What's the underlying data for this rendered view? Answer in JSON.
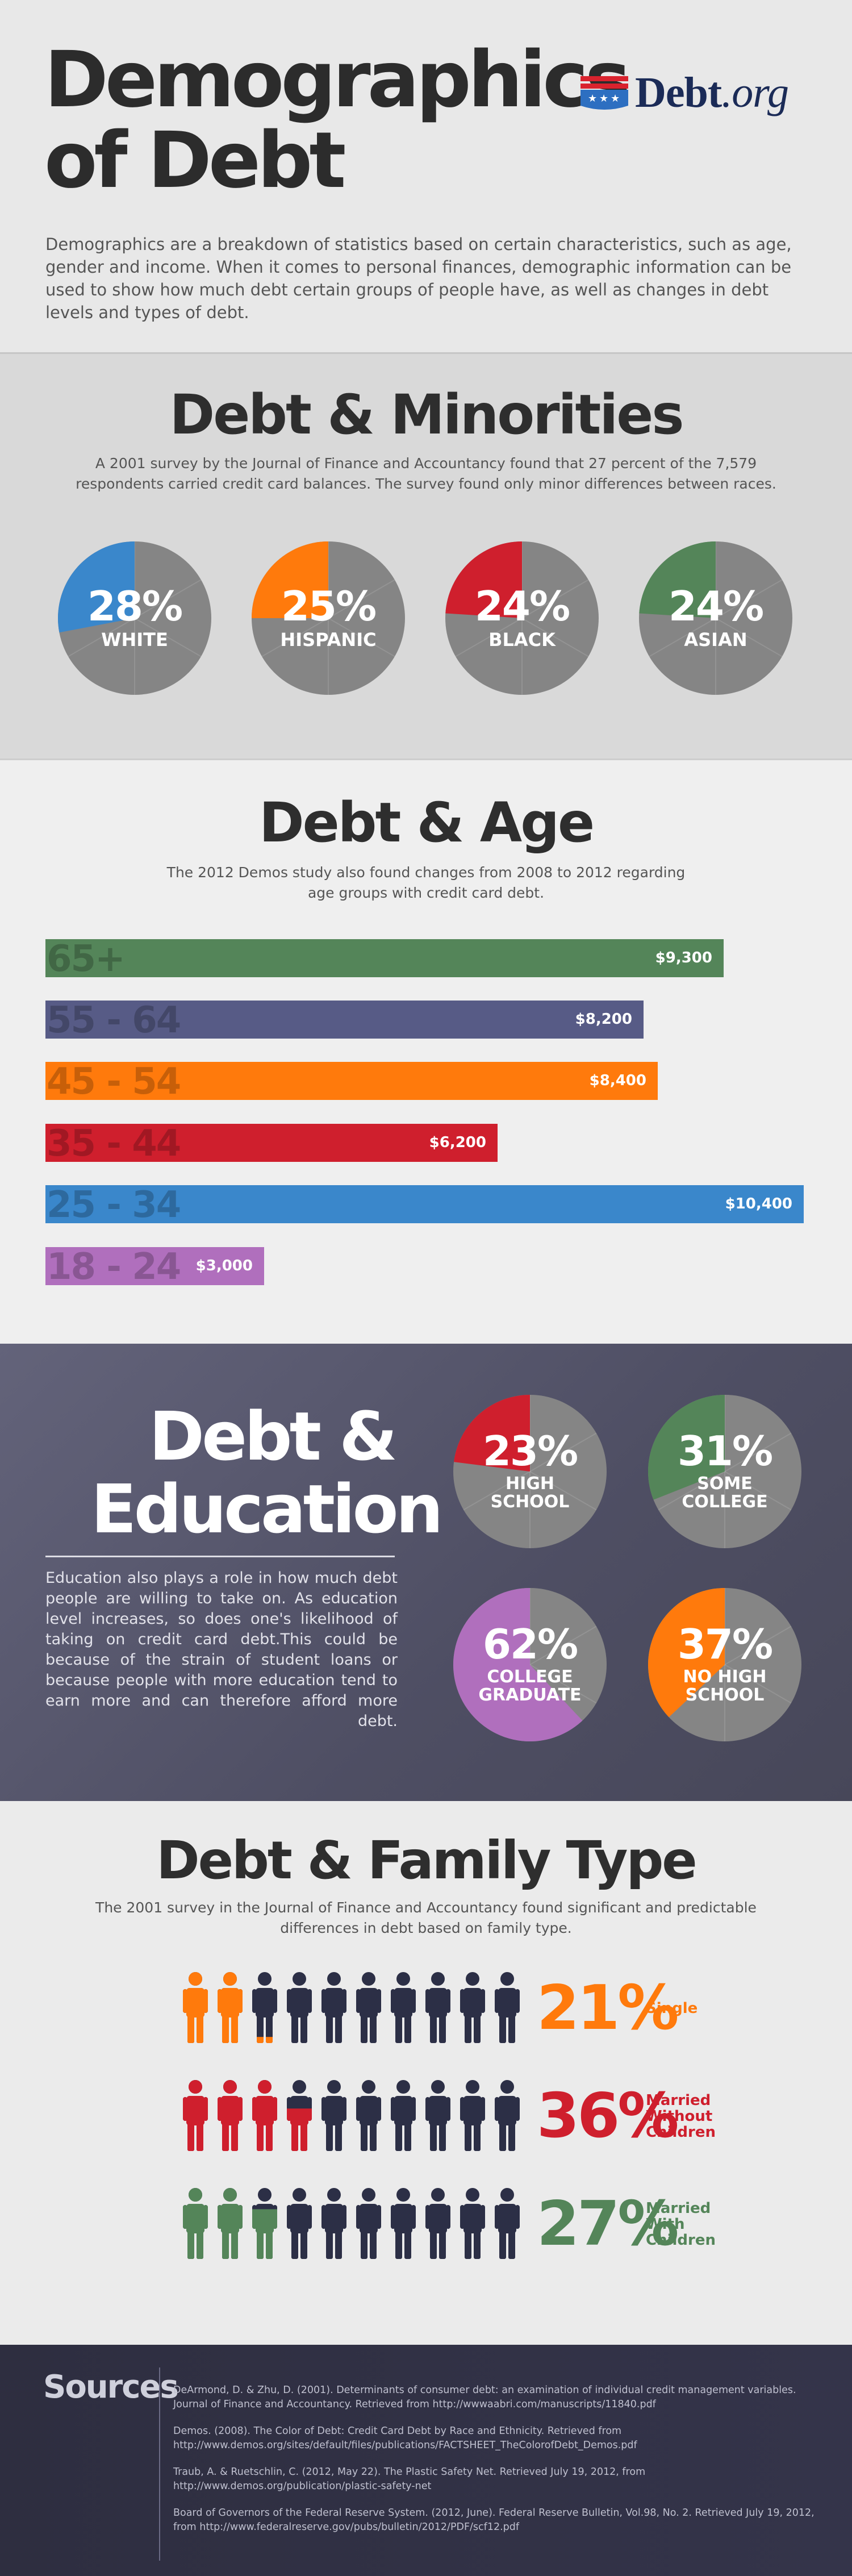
{
  "header": {
    "title_line1": "Demographics",
    "title_line2": "of Debt",
    "logo_main": "Debt",
    "logo_tld": ".org",
    "intro": "Demographics are a breakdown of statistics based on certain characteristics, such as age, gender and income. When it comes to personal finances, demographic information can be used to show how much debt certain groups of people have, as well as changes in debt levels and types of debt."
  },
  "colors": {
    "blue": "#3a87cb",
    "orange": "#ff7a0c",
    "red": "#cf1f2d",
    "green": "#548559",
    "purple": "#575b86",
    "violet": "#b06fbd",
    "gray": "#858585",
    "navy": "#2c2f46"
  },
  "minorities": {
    "title": "Debt & Minorities",
    "description": "A 2001 survey by the Journal of Finance and Accountancy found that 27 percent of the 7,579 respondents carried credit card balances. The survey found only minor differences between races."
  },
  "age": {
    "title": "Debt & Age",
    "description": "The 2012 Demos study also found changes from 2008 to 2012 regarding age groups with credit card debt."
  },
  "education": {
    "title_line1": "Debt &",
    "title_line2": "Education",
    "description": "Education also plays a role in how much debt people are willing to take on.  As education level increases, so does one's likelihood of taking on credit card debt.This could be because of the strain of student loans or because people with more education tend to earn more and can therefore afford more debt."
  },
  "family": {
    "title": "Debt & Family Type",
    "description": "The 2001 survey in the Journal of Finance and Accountancy found significant and predictable differences in debt based on family type."
  },
  "sources": {
    "title": "Sources",
    "items": [
      "DeArmond, D. & Zhu, D. (2001). Determinants of consumer debt: an examination of individual credit management variables. Journal of Finance and Accountancy. Retrieved from http://wwwaabri.com/manuscripts/11840.pdf",
      "Demos. (2008). The Color of Debt: Credit Card Debt by Race and Ethnicity. Retrieved from http://www.demos.org/sites/default/files/publications/FACTSHEET_TheColorofDebt_Demos.pdf",
      "Traub, A. & Ruetschlin, C. (2012, May 22). The Plastic Safety Net. Retrieved July 19, 2012, from http://www.demos.org/publication/plastic-safety-net",
      "Board of Governors of the Federal Reserve System. (2012, June). Federal Reserve Bulletin, Vol.98, No. 2. Retrieved July 19, 2012, from http://www.federalreserve.gov/pubs/bulletin/2012/PDF/scf12.pdf"
    ]
  },
  "chart_data": [
    {
      "type": "pie",
      "categories": [
        "WHITE",
        "HISPANIC",
        "BLACK",
        "ASIAN"
      ],
      "values": [
        28,
        25,
        24,
        24
      ],
      "labels": [
        "28%",
        "25%",
        "24%",
        "24%"
      ],
      "colors": [
        "#3a87cb",
        "#ff7a0c",
        "#cf1f2d",
        "#548559"
      ]
    },
    {
      "type": "bar",
      "categories": [
        "65+",
        "55 - 64",
        "45 - 54",
        "35 - 44",
        "25 - 34",
        "18 - 24"
      ],
      "values": [
        9300,
        8200,
        8400,
        6200,
        10400,
        3000
      ],
      "labels": [
        "$9,300",
        "$8,200",
        "$8,400",
        "$6,200",
        "$10,400",
        "$3,000"
      ],
      "colors": [
        "#548559",
        "#575b86",
        "#ff7a0c",
        "#cf1f2d",
        "#3a87cb",
        "#b06fbd"
      ]
    },
    {
      "type": "pie",
      "categories": [
        "HIGH SCHOOL",
        "SOME COLLEGE",
        "COLLEGE GRADUATE",
        "NO HIGH SCHOOL"
      ],
      "values": [
        23,
        31,
        62,
        37
      ],
      "labels": [
        "23%",
        "31%",
        "62%",
        "37%"
      ],
      "colors": [
        "#cf1f2d",
        "#548559",
        "#b06fbd",
        "#ff7a0c"
      ]
    },
    {
      "type": "bar",
      "categories": [
        "Single",
        "Married Without Children",
        "Married With Children"
      ],
      "values": [
        21,
        36,
        27
      ],
      "labels": [
        "21%",
        "36%",
        "27%"
      ],
      "colors": [
        "#ff7a0c",
        "#cf1f2d",
        "#548559"
      ]
    }
  ]
}
